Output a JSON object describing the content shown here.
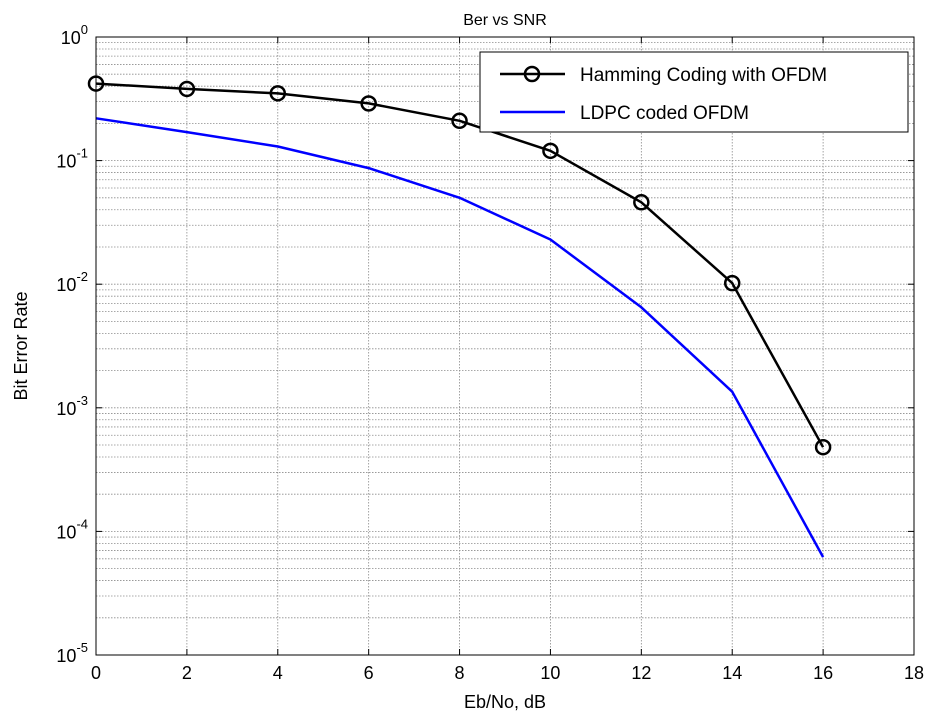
{
  "chart_data": {
    "type": "line",
    "title": "Ber vs SNR",
    "xlabel": "Eb/No, dB",
    "ylabel": "Bit Error Rate",
    "xlim": [
      0,
      18
    ],
    "ylim": [
      1e-05,
      1
    ],
    "yscale": "log",
    "grid": true,
    "legend_position": "top-right",
    "x_ticks": [
      "0",
      "2",
      "4",
      "6",
      "8",
      "10",
      "12",
      "14",
      "16",
      "18"
    ],
    "y_ticks": [
      {
        "base": "10",
        "exp": "0"
      },
      {
        "base": "10",
        "exp": "-1"
      },
      {
        "base": "10",
        "exp": "-2"
      },
      {
        "base": "10",
        "exp": "-3"
      },
      {
        "base": "10",
        "exp": "-4"
      },
      {
        "base": "10",
        "exp": "-5"
      }
    ],
    "series": [
      {
        "name": "Hamming Coding with OFDM",
        "color": "#000000",
        "marker": "circle",
        "x": [
          0,
          2,
          4,
          6,
          8,
          10,
          12,
          14,
          16
        ],
        "y": [
          0.42,
          0.38,
          0.35,
          0.29,
          0.21,
          0.12,
          0.046,
          0.0102,
          0.00048
        ]
      },
      {
        "name": "LDPC coded OFDM",
        "color": "#0000ff",
        "marker": "none",
        "x": [
          0,
          2,
          4,
          6,
          8,
          10,
          12,
          14,
          16
        ],
        "y": [
          0.22,
          0.17,
          0.13,
          0.087,
          0.05,
          0.023,
          0.0065,
          0.00135,
          6.2e-05
        ]
      }
    ]
  }
}
